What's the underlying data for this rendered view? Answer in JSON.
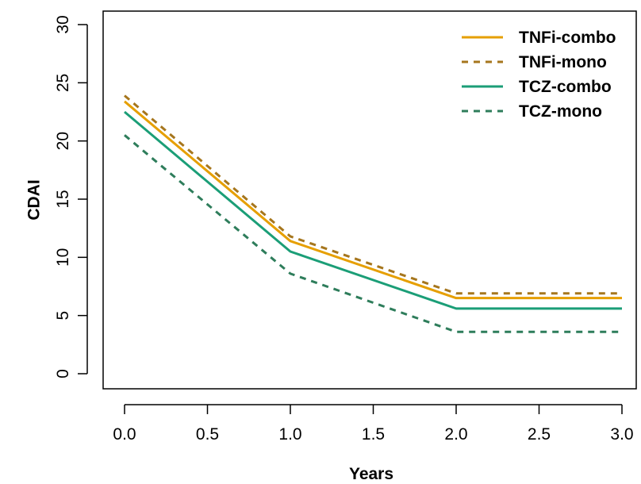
{
  "chart_data": {
    "type": "line",
    "title": "",
    "xlabel": "Years",
    "ylabel": "CDAI",
    "xlim": [
      0,
      3
    ],
    "ylim": [
      0,
      30
    ],
    "x_ticks": [
      "0.0",
      "0.5",
      "1.0",
      "1.5",
      "2.0",
      "2.5",
      "3.0"
    ],
    "y_ticks": [
      "0",
      "5",
      "10",
      "15",
      "20",
      "25",
      "30"
    ],
    "grid": false,
    "legend_position": "top-right",
    "series": [
      {
        "name": "TNFi-combo",
        "color": "#E69F00",
        "style": "solid",
        "x": [
          0,
          1,
          2,
          3
        ],
        "y": [
          23.4,
          11.4,
          6.5,
          6.5
        ]
      },
      {
        "name": "TNFi-mono",
        "color": "#A6761D",
        "style": "dashed",
        "x": [
          0,
          1,
          2,
          3
        ],
        "y": [
          23.9,
          11.8,
          6.9,
          6.9
        ]
      },
      {
        "name": "TCZ-combo",
        "color": "#1B9E77",
        "style": "solid",
        "x": [
          0,
          1,
          2,
          3
        ],
        "y": [
          22.5,
          10.5,
          5.6,
          5.6
        ]
      },
      {
        "name": "TCZ-mono",
        "color": "#2E7D5B",
        "style": "dashed",
        "x": [
          0,
          1,
          2,
          3
        ],
        "y": [
          20.5,
          8.6,
          3.6,
          3.6
        ]
      }
    ]
  }
}
